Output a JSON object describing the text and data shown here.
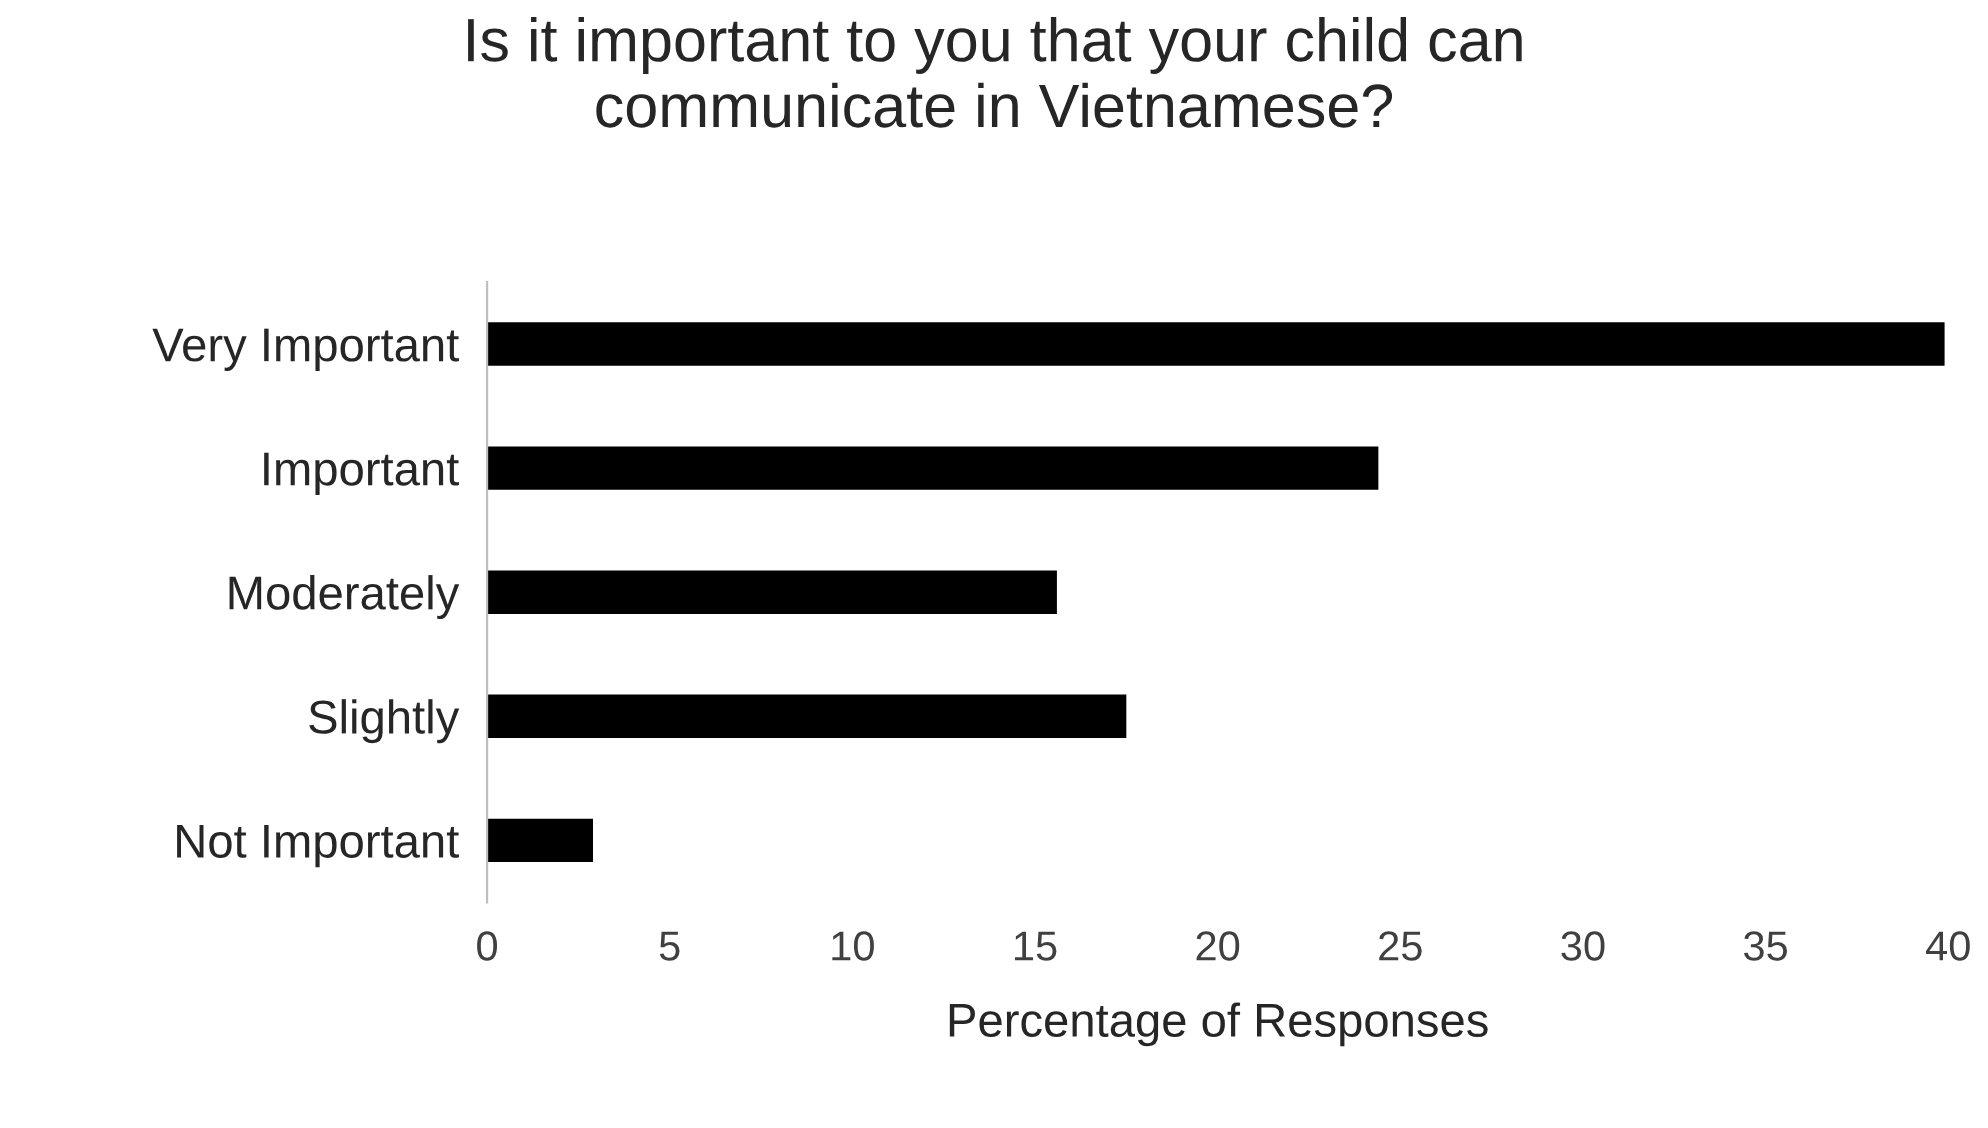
{
  "chart_data": {
    "type": "bar",
    "orientation": "horizontal",
    "title": "Is it important to you that your child can\ncommunicate in Vietnamese?",
    "xlabel": "Percentage of Responses",
    "categories": [
      "Very Important",
      "Important",
      "Moderately",
      "Slightly",
      "Not Important"
    ],
    "values": [
      39.9,
      24.4,
      15.6,
      17.5,
      2.9
    ],
    "color": "#000000",
    "xlim": [
      0,
      40
    ],
    "xticks": [
      0,
      5,
      10,
      15,
      20,
      25,
      30,
      35,
      40
    ],
    "grid": false,
    "legend": false
  }
}
